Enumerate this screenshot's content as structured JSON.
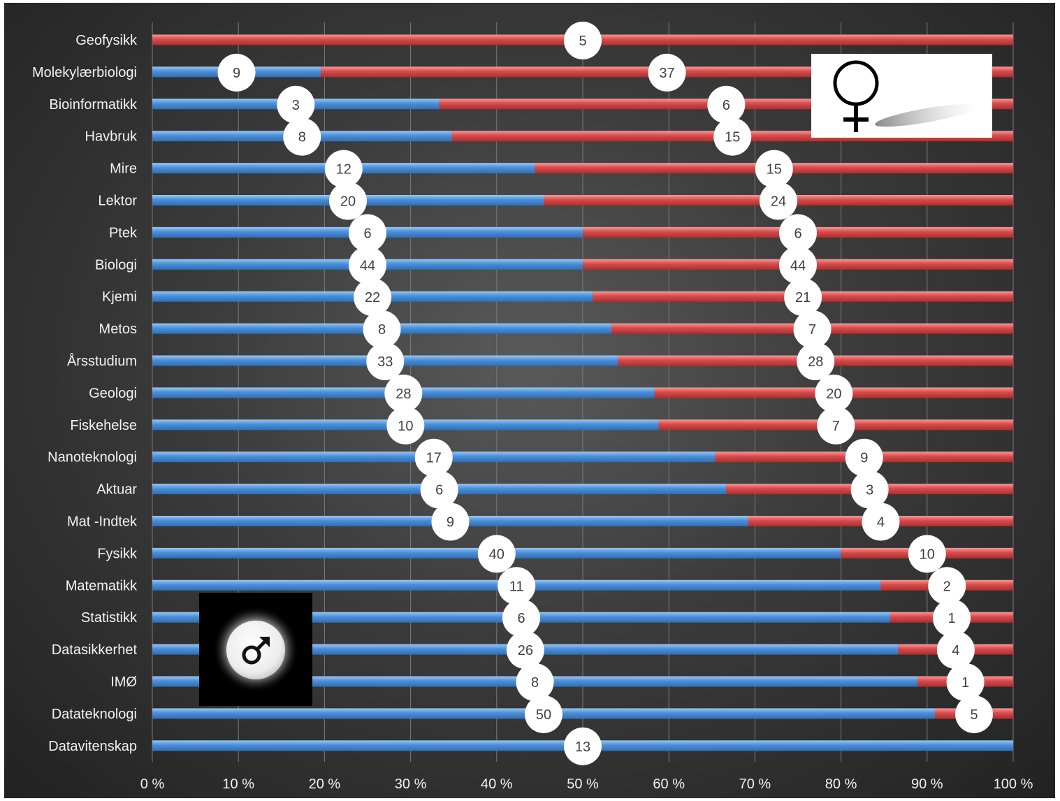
{
  "chart_data": {
    "type": "bar",
    "orientation": "horizontal",
    "stacked": "percent",
    "title": "",
    "xlabel": "",
    "ylabel": "",
    "xlim": [
      0,
      100
    ],
    "x_ticks": [
      "0 %",
      "10 %",
      "20 %",
      "30 %",
      "40 %",
      "50 %",
      "60 %",
      "70 %",
      "80 %",
      "90 %",
      "100 %"
    ],
    "grid": true,
    "legend": "none",
    "categories": [
      "Geofysikk",
      "Molekylærbiologi",
      "Bioinformatikk",
      "Havbruk",
      "Mire",
      "Lektor",
      "Ptek",
      "Biologi",
      "Kjemi",
      "Metos",
      "Årsstudium",
      "Geologi",
      "Fiskehelse",
      "Nanoteknologi",
      "Aktuar",
      "Mat -Indtek",
      "Fysikk",
      "Matematikk",
      "Statistikk",
      "Datasikkerhet",
      "IMØ",
      "Datateknologi",
      "Datavitenskap"
    ],
    "series": [
      {
        "color": "#4a8fd8",
        "values": [
          0,
          9,
          3,
          8,
          12,
          20,
          6,
          44,
          22,
          8,
          33,
          28,
          10,
          17,
          6,
          9,
          40,
          11,
          6,
          26,
          8,
          50,
          13
        ]
      },
      {
        "color": "#d94a4a",
        "values": [
          5,
          37,
          6,
          15,
          15,
          24,
          6,
          44,
          21,
          7,
          28,
          20,
          7,
          9,
          3,
          4,
          10,
          2,
          1,
          4,
          1,
          5,
          0
        ]
      }
    ]
  },
  "icons": {
    "female": "venus-symbol-icon",
    "male": "mars-symbol-icon"
  }
}
